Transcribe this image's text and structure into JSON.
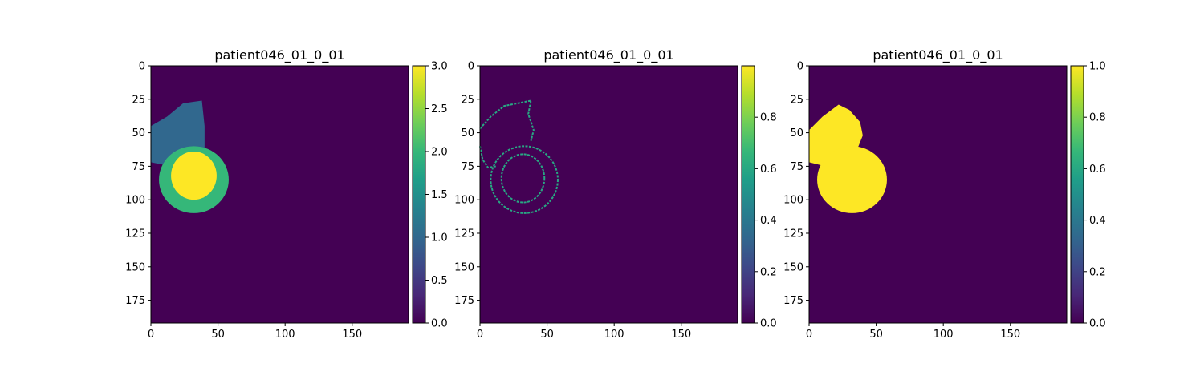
{
  "colors": {
    "viridis_stops": [
      "#440154",
      "#482878",
      "#3e4989",
      "#31688e",
      "#26828e",
      "#1f9e89",
      "#35b779",
      "#6ece58",
      "#b5de2b",
      "#fde725"
    ]
  },
  "chart_data": [
    {
      "type": "heatmap",
      "title": "patient046_01_0_01",
      "image_size": [
        192,
        192
      ],
      "xticks": [
        0,
        50,
        100,
        150
      ],
      "yticks": [
        0,
        25,
        50,
        75,
        100,
        125,
        150,
        175
      ],
      "colorbar": {
        "min": 0.0,
        "max": 3.0,
        "ticks": [
          0.0,
          0.5,
          1.0,
          1.5,
          2.0,
          2.5,
          3.0
        ],
        "labels": [
          "0.0",
          "0.5",
          "1.0",
          "1.5",
          "2.0",
          "2.5",
          "3.0"
        ]
      },
      "background_value": 0,
      "regions": [
        {
          "label": 1,
          "shape": "polygon",
          "points": [
            [
              0,
              45
            ],
            [
              12,
              38
            ],
            [
              24,
              28
            ],
            [
              38,
              26
            ],
            [
              40,
              45
            ],
            [
              40,
              62
            ],
            [
              28,
              70
            ],
            [
              10,
              74
            ],
            [
              0,
              72
            ]
          ]
        },
        {
          "label": 2,
          "shape": "ellipse",
          "center": [
            32,
            85
          ],
          "radii": [
            26,
            25
          ]
        },
        {
          "label": 3,
          "shape": "ellipse",
          "center": [
            32,
            82
          ],
          "radii": [
            17,
            18
          ]
        }
      ]
    },
    {
      "type": "heatmap",
      "title": "patient046_01_0_01",
      "image_size": [
        192,
        192
      ],
      "xticks": [
        0,
        50,
        100,
        150
      ],
      "yticks": [
        0,
        25,
        50,
        75,
        100,
        125,
        150,
        175
      ],
      "colorbar": {
        "min": 0.0,
        "max": 1.0,
        "ticks": [
          0.0,
          0.2,
          0.4,
          0.6,
          0.8
        ],
        "labels": [
          "0.0",
          "0.2",
          "0.4",
          "0.6",
          "0.8"
        ]
      },
      "background_value": 0,
      "contours": [
        {
          "value": 0.6,
          "shape": "polyline",
          "points": [
            [
              0,
              47
            ],
            [
              8,
              38
            ],
            [
              18,
              30
            ],
            [
              28,
              28
            ],
            [
              38,
              26
            ],
            [
              36,
              36
            ],
            [
              40,
              48
            ],
            [
              38,
              56
            ]
          ]
        },
        {
          "value": 0.6,
          "shape": "polyline",
          "points": [
            [
              0,
              60
            ],
            [
              2,
              70
            ],
            [
              6,
              76
            ],
            [
              12,
              75
            ]
          ]
        },
        {
          "value": 0.6,
          "shape": "ellipse",
          "center": [
            33,
            85
          ],
          "radii": [
            25,
            25
          ]
        },
        {
          "value": 0.6,
          "shape": "ellipse",
          "center": [
            32,
            84
          ],
          "radii": [
            16,
            18
          ]
        }
      ]
    },
    {
      "type": "heatmap",
      "title": "patient046_01_0_01",
      "image_size": [
        192,
        192
      ],
      "xticks": [
        0,
        50,
        100,
        150
      ],
      "yticks": [
        0,
        25,
        50,
        75,
        100,
        125,
        150,
        175
      ],
      "colorbar": {
        "min": 0.0,
        "max": 1.0,
        "ticks": [
          0.0,
          0.2,
          0.4,
          0.6,
          0.8,
          1.0
        ],
        "labels": [
          "0.0",
          "0.2",
          "0.4",
          "0.6",
          "0.8",
          "1.0"
        ]
      },
      "background_value": 0,
      "regions": [
        {
          "label": 1,
          "shape": "polygon",
          "points": [
            [
              0,
              48
            ],
            [
              10,
              38
            ],
            [
              22,
              29
            ],
            [
              30,
              33
            ],
            [
              38,
              42
            ],
            [
              40,
              52
            ],
            [
              36,
              62
            ],
            [
              28,
              72
            ],
            [
              12,
              75
            ],
            [
              0,
              72
            ]
          ]
        },
        {
          "label": 1,
          "shape": "ellipse",
          "center": [
            32,
            85
          ],
          "radii": [
            26,
            25
          ]
        }
      ]
    }
  ]
}
